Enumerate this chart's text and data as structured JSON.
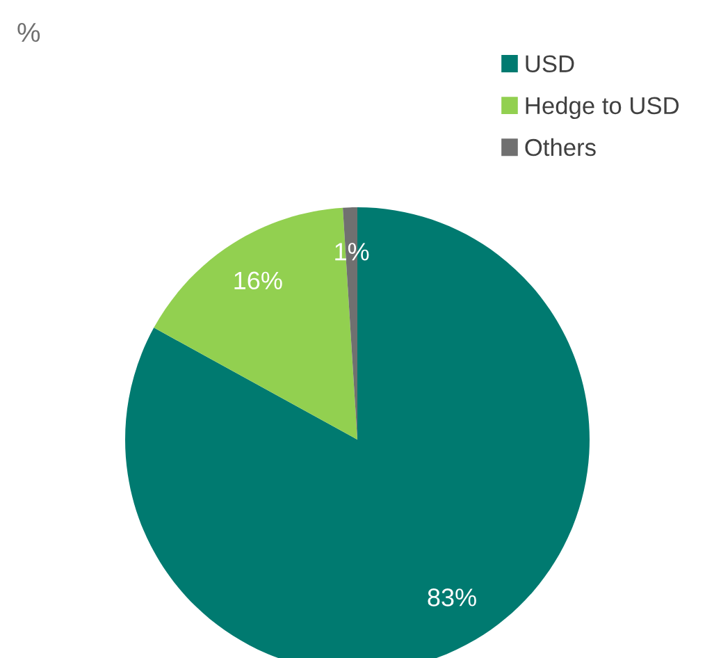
{
  "chart_data": {
    "type": "pie",
    "title": "%",
    "categories": [
      "USD",
      "Hedge to USD",
      "Others"
    ],
    "values": [
      83,
      16,
      1
    ],
    "colors": [
      "#007a70",
      "#92d050",
      "#707070"
    ],
    "value_labels": [
      "83%",
      "16%",
      "1%"
    ],
    "legend": "top right"
  }
}
